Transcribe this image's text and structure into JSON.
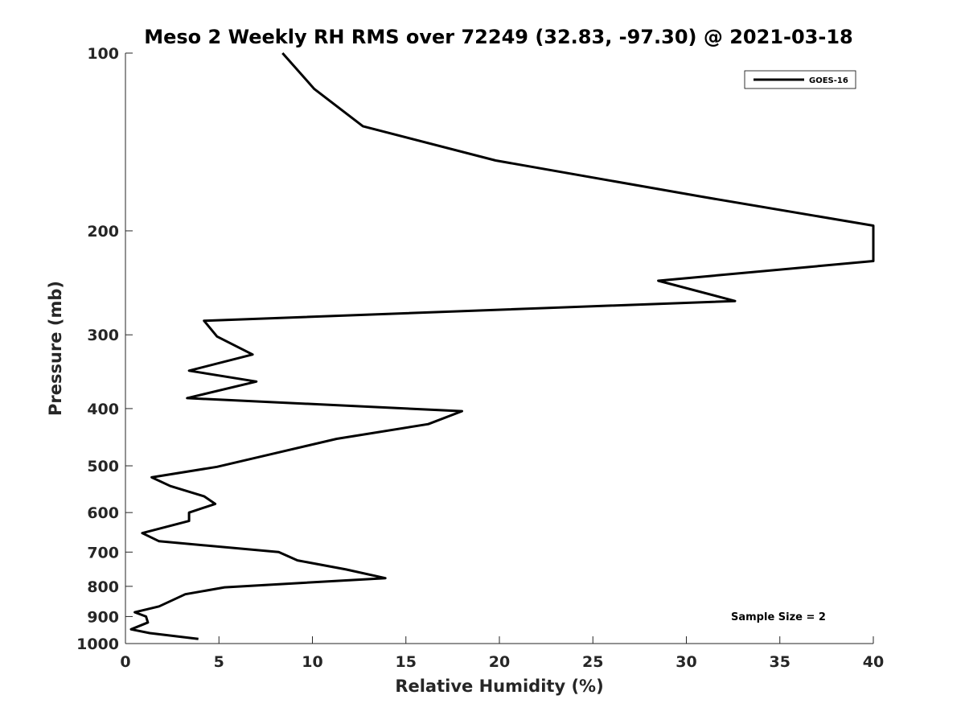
{
  "chart_data": {
    "type": "line",
    "title": "Meso 2 Weekly RH RMS over 72249 (32.83, -97.30) @ 2021-03-18",
    "xlabel": "Relative Humidity (%)",
    "ylabel": "Pressure (mb)",
    "xlim": [
      0,
      40
    ],
    "ylim": [
      100,
      1000
    ],
    "y_scale": "log",
    "y_reversed": true,
    "x_ticks": [
      0,
      5,
      10,
      15,
      20,
      25,
      30,
      35,
      40
    ],
    "y_ticks": [
      100,
      200,
      300,
      400,
      500,
      600,
      700,
      800,
      900,
      1000
    ],
    "grid": false,
    "legend_position": "top-right",
    "annotation": "Sample Size = 2",
    "series": [
      {
        "name": "GOES-16",
        "color": "#000000",
        "x": [
          8.4,
          10.1,
          12.7,
          19.8,
          30.8,
          40.0,
          40.0,
          28.5,
          32.6,
          4.2,
          4.9,
          6.8,
          3.4,
          7.0,
          3.3,
          18.0,
          16.2,
          11.3,
          8.0,
          4.9,
          1.4,
          2.4,
          4.2,
          4.8,
          3.4,
          3.4,
          0.9,
          1.8,
          8.2,
          9.2,
          11.8,
          13.9,
          5.3,
          3.2,
          2.6,
          1.8,
          0.5,
          1.1,
          1.2,
          0.3,
          1.3,
          3.9
        ],
        "y": [
          100,
          115,
          133,
          152,
          175,
          196,
          225,
          243,
          263,
          284,
          302,
          324,
          345,
          360,
          384,
          404,
          425,
          450,
          476,
          502,
          523,
          541,
          563,
          580,
          600,
          620,
          650,
          671,
          700,
          723,
          749,
          775,
          803,
          825,
          842,
          865,
          885,
          900,
          921,
          946,
          960,
          982
        ]
      }
    ]
  }
}
